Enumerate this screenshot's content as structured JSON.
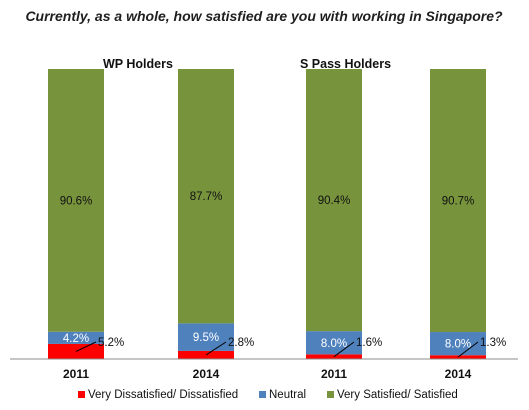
{
  "chart_data": {
    "type": "bar",
    "stacked": true,
    "title": "Currently, as a whole, how satisfied are you with working in Singapore?",
    "xlabel": "",
    "ylabel": "",
    "ylim": [
      0,
      100
    ],
    "grid": false,
    "legend_position": "bottom",
    "groups": [
      {
        "label": "WP Holders",
        "categories": [
          "2011",
          "2014"
        ]
      },
      {
        "label": "S Pass Holders",
        "categories": [
          "2011",
          "2014"
        ]
      }
    ],
    "categories": [
      "2011",
      "2014",
      "2011",
      "2014"
    ],
    "series": [
      {
        "name": "Very Dissatisfied/ Dissatisfied",
        "color": "#ff0000",
        "values": [
          5.2,
          2.8,
          1.6,
          1.3
        ],
        "labels": [
          "5.2%",
          "2.8%",
          "1.6%",
          "1.3%"
        ]
      },
      {
        "name": "Neutral",
        "color": "#4f81bd",
        "values": [
          4.2,
          9.5,
          8.0,
          8.0
        ],
        "labels": [
          "4.2%",
          "9.5%",
          "8.0%",
          "8.0%"
        ]
      },
      {
        "name": "Very Satisfied/ Satisfied",
        "color": "#77933c",
        "values": [
          90.6,
          87.7,
          90.4,
          90.7
        ],
        "labels": [
          "90.6%",
          "87.7%",
          "90.4%",
          "90.7%"
        ]
      }
    ]
  }
}
